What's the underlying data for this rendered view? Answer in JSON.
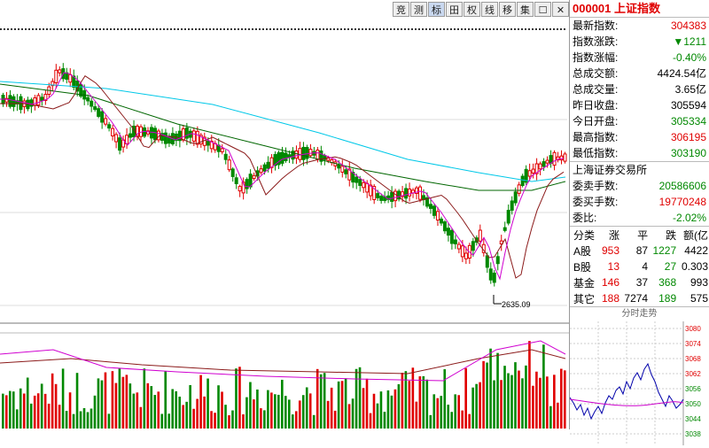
{
  "toolbar": {
    "buttons": [
      "竞",
      "测",
      "标",
      "田",
      "权",
      "线",
      "移",
      "集",
      "☐",
      "✕"
    ],
    "active_index": 2
  },
  "chart": {
    "low_label": "2635.09"
  },
  "panel": {
    "code_title": "000001 上证指数",
    "rows": [
      {
        "label": "最新指数:",
        "value": "304383",
        "color": "#e00000"
      },
      {
        "label": "指数涨跌:",
        "value": "▼1211",
        "color": "#008800"
      },
      {
        "label": "指数涨幅:",
        "value": "-0.40%",
        "color": "#008800"
      },
      {
        "label": "总成交额:",
        "value": "4424.54亿",
        "color": "#000000"
      },
      {
        "label": "总成交量:",
        "value": "3.65亿",
        "color": "#000000"
      },
      {
        "label": "昨日收盘:",
        "value": "305594",
        "color": "#000000"
      },
      {
        "label": "今日开盘:",
        "value": "305334",
        "color": "#008800"
      },
      {
        "label": "最高指数:",
        "value": "306195",
        "color": "#e00000"
      },
      {
        "label": "最低指数:",
        "value": "303190",
        "color": "#008800"
      }
    ],
    "exchange": "上海证券交易所",
    "rows2": [
      {
        "label": "委卖手数:",
        "value": "20586606",
        "color": "#008800"
      },
      {
        "label": "委买手数:",
        "value": "19770248",
        "color": "#e00000"
      },
      {
        "label": "委比:",
        "value": "-2.02%",
        "color": "#008800"
      }
    ],
    "cat_headers": [
      "分类",
      "涨",
      "平",
      "跌",
      "额(亿"
    ],
    "cat_rows": [
      [
        "A股",
        "953",
        "87",
        "1227",
        "4422"
      ],
      [
        "B股",
        "13",
        "4",
        "27",
        "0.303"
      ],
      [
        "基金",
        "146",
        "37",
        "368",
        "993"
      ],
      [
        "其它",
        "188",
        "7274",
        "189",
        "575"
      ]
    ],
    "mini_title": "分时走势",
    "mini_ticks": [
      "3080",
      "3074",
      "3068",
      "3062",
      "3056",
      "3050",
      "3044",
      "3038"
    ]
  }
}
